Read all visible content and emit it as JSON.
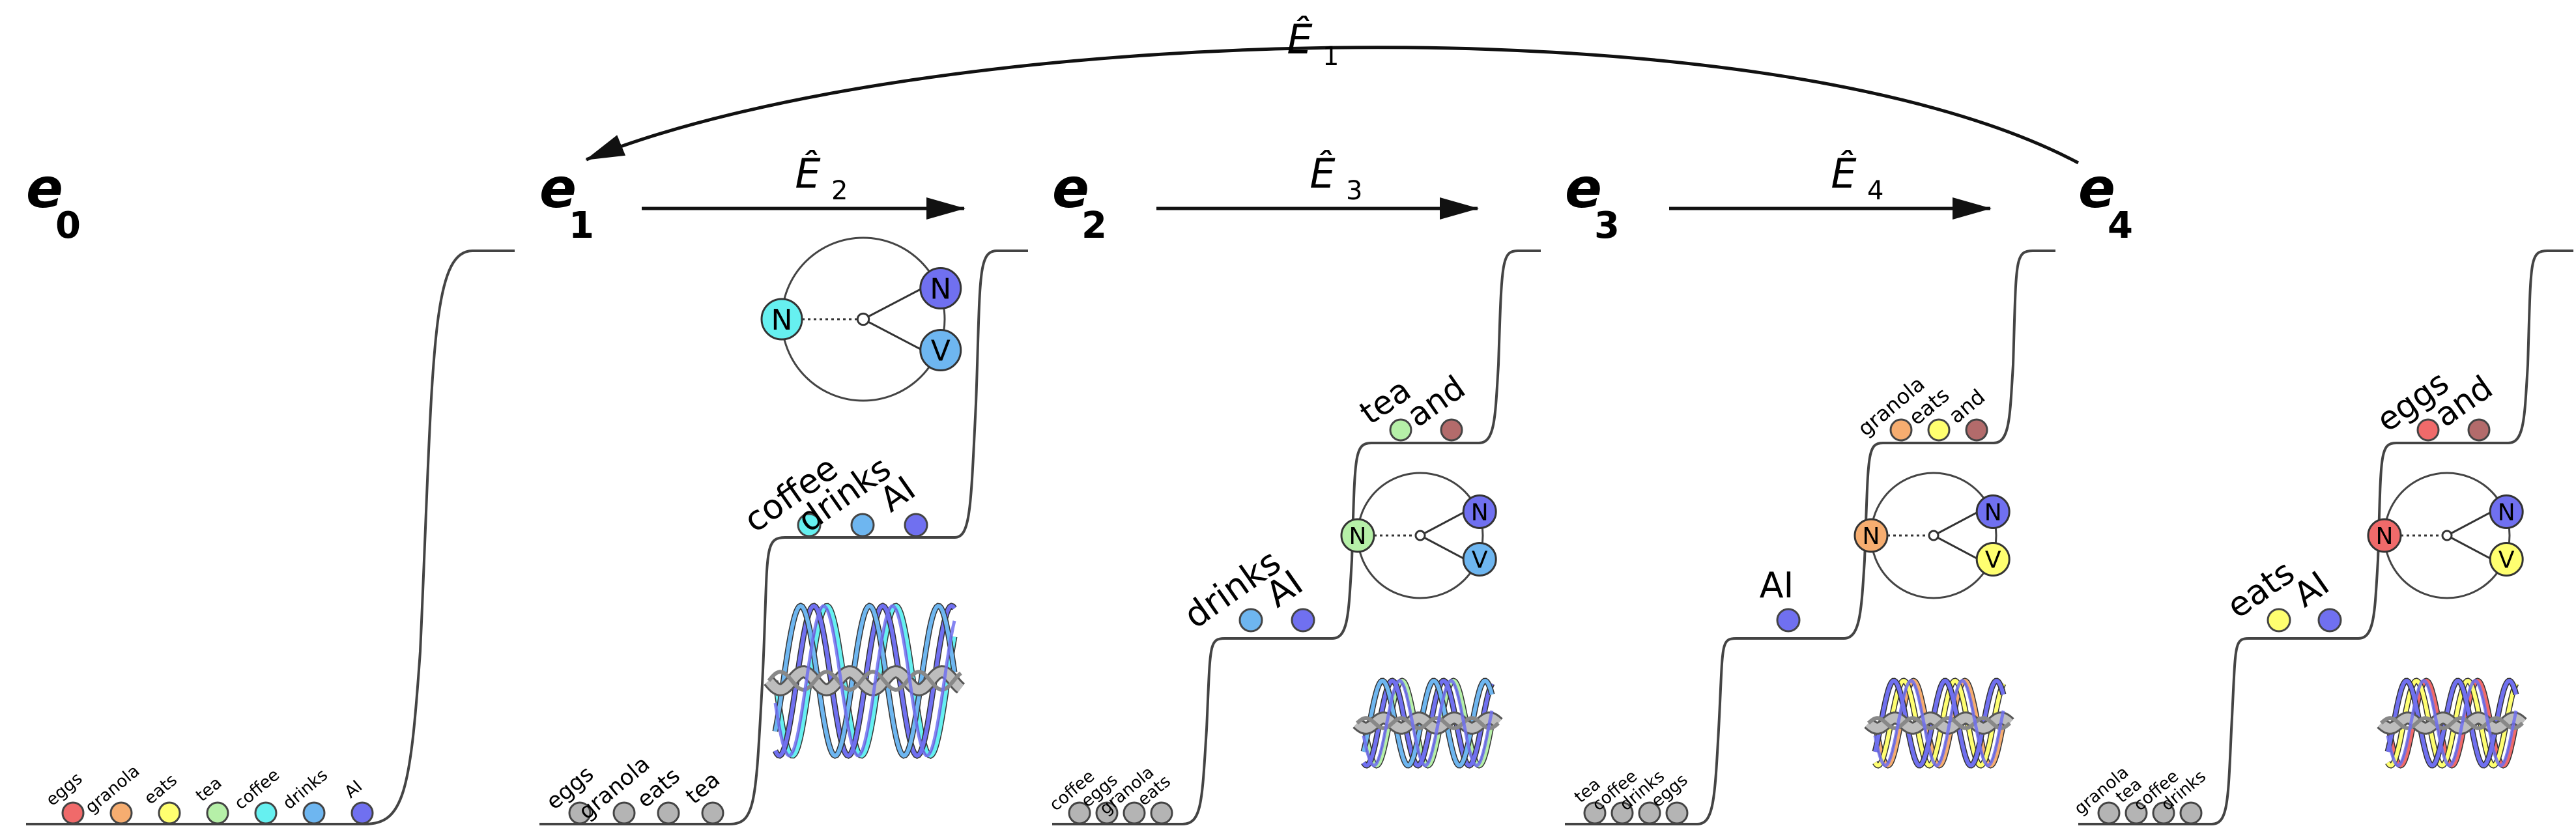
{
  "operators": {
    "top": "Ê",
    "top_sub": "1",
    "e2": "Ê",
    "e2_sub": "2",
    "e3": "Ê",
    "e3_sub": "3",
    "e4": "Ê",
    "e4_sub": "4"
  },
  "states": [
    {
      "label": "e",
      "sub": "0"
    },
    {
      "label": "e",
      "sub": "1"
    },
    {
      "label": "e",
      "sub": "2"
    },
    {
      "label": "e",
      "sub": "3"
    },
    {
      "label": "e",
      "sub": "4"
    }
  ],
  "colors": {
    "eggs": "#f06a6a",
    "granola": "#f6ad70",
    "eats": "#ffff70",
    "tea": "#b6f0a8",
    "coffee": "#66f0f0",
    "drinks": "#6eb6f0",
    "AI": "#7070f0",
    "and": "#b36b6b",
    "gray": "#b4b4b4"
  },
  "panel0": {
    "bottom": [
      "eggs",
      "granola",
      "eats",
      "tea",
      "coffee",
      "drinks",
      "AI"
    ]
  },
  "panel1": {
    "bottom": [
      "eggs",
      "granola",
      "eats",
      "tea"
    ],
    "middle": [
      "coffee",
      "drinks",
      "AI"
    ],
    "circle": [
      "N",
      "N",
      "V"
    ]
  },
  "panel2": {
    "bottom": [
      "coffee",
      "eggs",
      "granola",
      "eats"
    ],
    "middle": [
      "drinks",
      "AI"
    ],
    "top": [
      "tea",
      "and"
    ],
    "circle": [
      "N",
      "N",
      "V"
    ]
  },
  "panel3": {
    "bottom": [
      "tea",
      "coffee",
      "drinks",
      "eggs"
    ],
    "middle": [
      "AI"
    ],
    "top": [
      "granola",
      "eats",
      "and"
    ],
    "circle": [
      "N",
      "N",
      "V"
    ]
  },
  "panel4": {
    "bottom": [
      "granola",
      "tea",
      "coffee",
      "drinks"
    ],
    "middle": [
      "eats",
      "AI"
    ],
    "top": [
      "eggs",
      "and"
    ],
    "circle": [
      "N",
      "N",
      "V"
    ]
  }
}
